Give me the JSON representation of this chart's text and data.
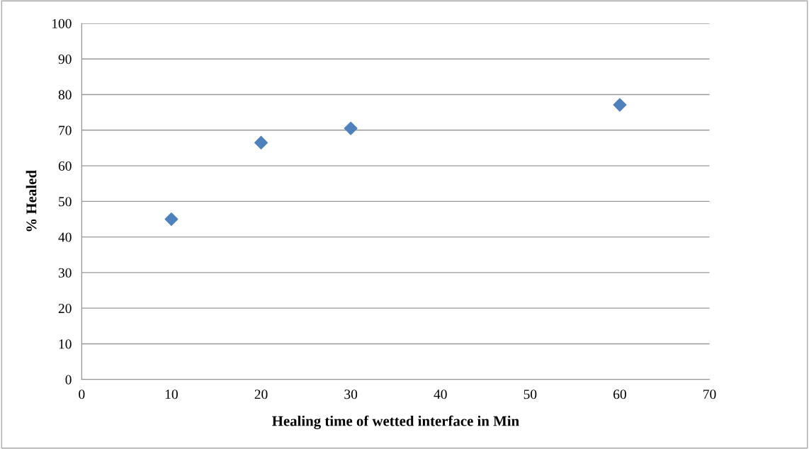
{
  "chart_data": {
    "type": "scatter",
    "xlabel": "Healing time of wetted interface in Min",
    "ylabel": "% Healed",
    "x": [
      10,
      20,
      30,
      60
    ],
    "series": [
      {
        "color": "#4f81bd",
        "values": [
          45.0,
          66.5,
          70.5,
          77.1
        ]
      }
    ],
    "xlim": [
      0,
      70
    ],
    "xticks": [
      0,
      10,
      20,
      30,
      40,
      50,
      60,
      70
    ],
    "ylim": [
      0,
      100
    ],
    "yticks": [
      0,
      10,
      20,
      30,
      40,
      50,
      60,
      70,
      80,
      90,
      100
    ],
    "grid": "y",
    "marker": "diamond",
    "legend": false
  }
}
